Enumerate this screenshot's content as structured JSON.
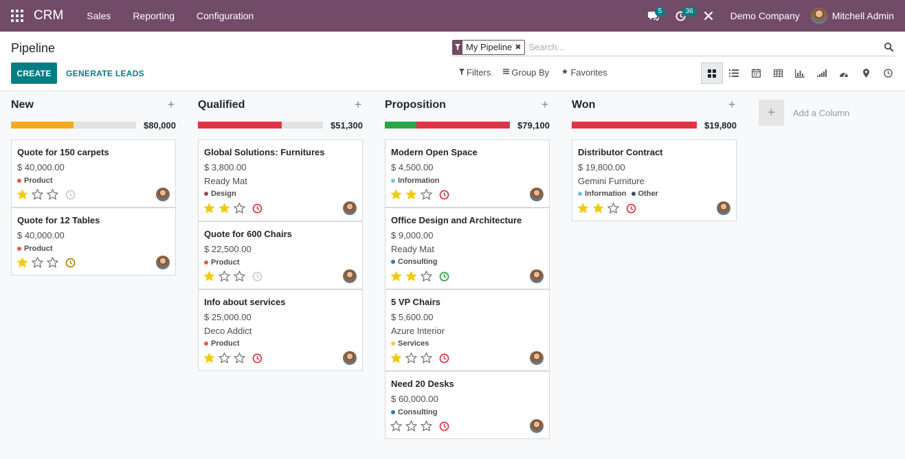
{
  "app": {
    "name": "CRM",
    "menu": [
      "Sales",
      "Reporting",
      "Configuration"
    ],
    "messages_count": "5",
    "activities_count": "36",
    "company": "Demo Company",
    "user": "Mitchell Admin"
  },
  "control": {
    "title": "Pipeline",
    "create_label": "CREATE",
    "generate_label": "GENERATE LEADS",
    "facet_label": "My Pipeline",
    "search_placeholder": "Search...",
    "filters_label": "Filters",
    "groupby_label": "Group By",
    "favorites_label": "Favorites",
    "views": [
      "kanban",
      "list",
      "calendar",
      "pivot",
      "graph",
      "cohort",
      "dashboard",
      "map",
      "activity"
    ],
    "active_view": "kanban"
  },
  "colors": {
    "brand": "#714b67",
    "accent": "#017e84",
    "progress_orange": "#f9a825",
    "progress_red": "#dc3545",
    "progress_green": "#28a745"
  },
  "columns": [
    {
      "title": "New",
      "total": "$80,000",
      "progress": [
        {
          "color": "#f9a825",
          "fraction": 0.5
        }
      ],
      "cards": [
        {
          "title": "Quote for 150 carpets",
          "amount": "$ 40,000.00",
          "partner": "",
          "tags": [
            {
              "label": "Product",
              "color": "#e45b4c"
            }
          ],
          "stars": 1,
          "activity": "none"
        },
        {
          "title": "Quote for 12 Tables",
          "amount": "$ 40,000.00",
          "partner": "",
          "tags": [
            {
              "label": "Product",
              "color": "#e45b4c"
            }
          ],
          "stars": 1,
          "activity": "warning"
        }
      ]
    },
    {
      "title": "Qualified",
      "total": "$51,300",
      "progress": [
        {
          "color": "#dc3545",
          "fraction": 0.67
        }
      ],
      "cards": [
        {
          "title": "Global Solutions: Furnitures",
          "amount": "$ 3,800.00",
          "partner": "Ready Mat",
          "tags": [
            {
              "label": "Design",
              "color": "#8e4a5c"
            }
          ],
          "stars": 2,
          "activity": "overdue"
        },
        {
          "title": "Quote for 600 Chairs",
          "amount": "$ 22,500.00",
          "partner": "",
          "tags": [
            {
              "label": "Product",
              "color": "#e45b4c"
            }
          ],
          "stars": 1,
          "activity": "none"
        },
        {
          "title": "Info about services",
          "amount": "$ 25,000.00",
          "partner": "Deco Addict",
          "tags": [
            {
              "label": "Product",
              "color": "#e45b4c"
            }
          ],
          "stars": 1,
          "activity": "overdue"
        }
      ]
    },
    {
      "title": "Proposition",
      "total": "$79,100",
      "progress": [
        {
          "color": "#28a745",
          "fraction": 0.25
        },
        {
          "color": "#dc3545",
          "fraction": 0.75
        }
      ],
      "cards": [
        {
          "title": "Modern Open Space",
          "amount": "$ 4,500.00",
          "partner": "",
          "tags": [
            {
              "label": "Information",
              "color": "#6cc1ed"
            }
          ],
          "stars": 2,
          "activity": "overdue"
        },
        {
          "title": "Office Design and Architecture",
          "amount": "$ 9,000.00",
          "partner": "Ready Mat",
          "tags": [
            {
              "label": "Consulting",
              "color": "#2c7b9b"
            }
          ],
          "stars": 2,
          "activity": "planned"
        },
        {
          "title": "5 VP Chairs",
          "amount": "$ 5,600.00",
          "partner": "Azure Interior",
          "tags": [
            {
              "label": "Services",
              "color": "#f4c94a"
            }
          ],
          "stars": 1,
          "activity": "overdue"
        },
        {
          "title": "Need 20 Desks",
          "amount": "$ 60,000.00",
          "partner": "",
          "tags": [
            {
              "label": "Consulting",
              "color": "#2c7b9b"
            }
          ],
          "stars": 0,
          "activity": "overdue"
        }
      ]
    },
    {
      "title": "Won",
      "total": "$19,800",
      "progress": [
        {
          "color": "#dc3545",
          "fraction": 1.0
        }
      ],
      "cards": [
        {
          "title": "Distributor Contract",
          "amount": "$ 19,800.00",
          "partner": "Gemini Furniture",
          "tags": [
            {
              "label": "Information",
              "color": "#6cc1ed"
            },
            {
              "label": "Other",
              "color": "#3d4b6b"
            }
          ],
          "stars": 2,
          "activity": "overdue"
        }
      ]
    }
  ],
  "add_column_label": "Add a Column"
}
